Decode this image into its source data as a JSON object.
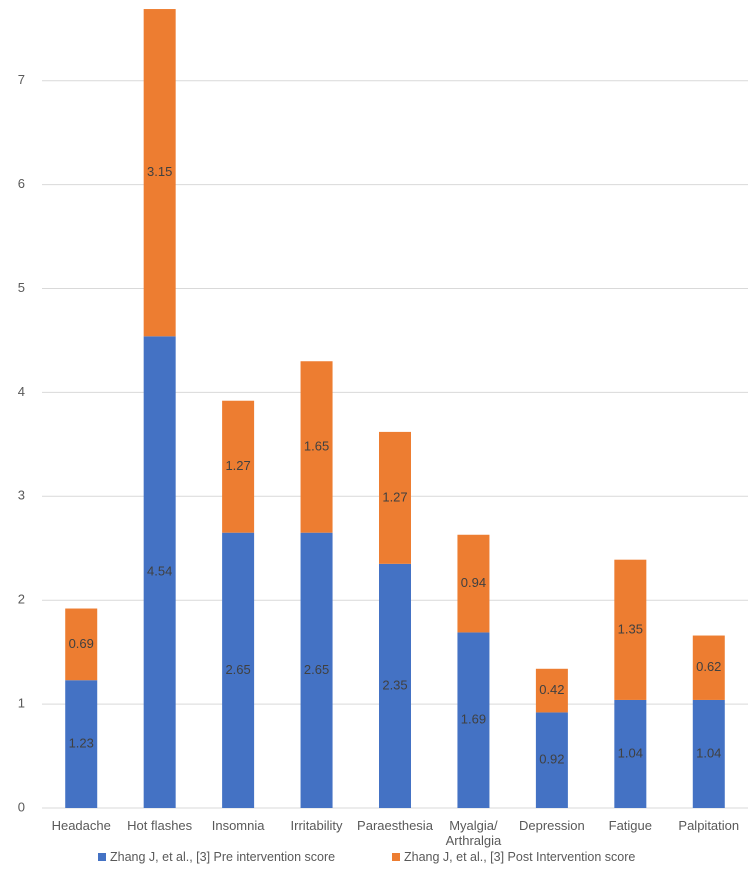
{
  "chart_data": {
    "type": "stacked_bar",
    "categories": [
      "Headache",
      "Hot flashes",
      "Insomnia",
      "Irritability",
      "Paraesthesia",
      "Myalgia/ Arthralgia",
      "Depression",
      "Fatigue",
      "Palpitation"
    ],
    "series": [
      {
        "name": "Zhang J, et al., [3] Pre intervention score",
        "color": "#4472c4",
        "values": [
          1.23,
          4.54,
          2.65,
          2.65,
          2.35,
          1.69,
          0.92,
          1.04,
          1.04
        ]
      },
      {
        "name": "Zhang J, et al., [3] Post Intervention score",
        "color": "#ed7d31",
        "values": [
          0.69,
          3.15,
          1.27,
          1.65,
          1.27,
          0.94,
          0.42,
          1.35,
          0.62
        ]
      }
    ],
    "ylim": [
      0,
      7.7
    ],
    "yticks": [
      0,
      1,
      2,
      3,
      4,
      5,
      6,
      7
    ],
    "grid": true
  }
}
